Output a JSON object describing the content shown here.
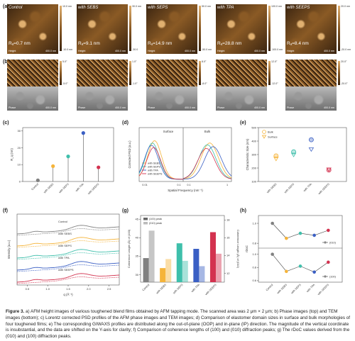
{
  "panel_letters": {
    "a": "(a)",
    "b": "(b)",
    "c": "(c)",
    "d": "(d)",
    "e": "(e)",
    "f": "(f)",
    "g": "(g)",
    "h": "(h)"
  },
  "afm": {
    "samples": [
      {
        "label": "Control",
        "rq": "Rₐ=0.7 nm",
        "cbar_top": "10.0 nm",
        "cbar_bot": "-10.0 nm",
        "scale": "400.0 nm"
      },
      {
        "label": "with SEBS",
        "rq": "Rₐ=9.1 nm",
        "cbar_top": "30.0 nm",
        "cbar_bot": "-30.0",
        "scale": "400.0 nm"
      },
      {
        "label": "with SEPS",
        "rq": "Rₐ=14.9 nm",
        "cbar_top": "50.0 nm",
        "cbar_bot": "-50.0 nm",
        "scale": "400.0 nm"
      },
      {
        "label": "with TPA",
        "rq": "Rₐ=28.8 nm",
        "cbar_top": "100.0 nm",
        "cbar_bot": "-100.0 nm",
        "scale": "400.0 nm"
      },
      {
        "label": "with SEEPS",
        "rq": "Rₐ=8.4 nm",
        "cbar_top": "20.0 nm",
        "cbar_bot": "-20.0 nm",
        "scale": "400.0 nm"
      }
    ],
    "height_tag": "Height",
    "phase_tag": "Phase",
    "phase_cbars": [
      {
        "top": "5.0°",
        "bot": "-5.0°"
      },
      {
        "top": "1.0°",
        "bot": "-1.0°"
      },
      {
        "top": "8.0°",
        "bot": "-8.0°"
      },
      {
        "top": "12.0°",
        "bot": "-12.0°"
      },
      {
        "top": "20.0°",
        "bot": "-20.0°"
      }
    ]
  },
  "colors": {
    "control": "#808080",
    "sebs": "#f5b43a",
    "seps": "#3ebfab",
    "tpa": "#3a5fc4",
    "seeps": "#d3324f",
    "afm_dark": "#3a2410",
    "afm_mid": "#8a5a25",
    "afm_light": "#e0b070"
  },
  "chart_data": [
    {
      "panel": "c",
      "type": "scatter",
      "ylabel": "R_q (nm)",
      "categories": [
        "Control",
        "with SEBS",
        "with SEPS",
        "with TPA",
        "with SEEPS"
      ],
      "values": [
        0.7,
        9.1,
        14.9,
        28.8,
        8.4
      ],
      "yticks": [
        0,
        10,
        20,
        30
      ],
      "ylim": [
        0,
        32
      ]
    },
    {
      "panel": "d",
      "type": "line",
      "xlabel": "Spatial Frequency (nm⁻¹)",
      "ylabel": "Corrected PSD (a.u.)",
      "regions": [
        "Surface",
        "Bulk"
      ],
      "xticks_left": [
        "0.01",
        "0.1"
      ],
      "xticks_right": [
        "0.1",
        "1"
      ],
      "series": [
        {
          "name": "with SEBS",
          "color": "#f5b43a"
        },
        {
          "name": "with SEPS",
          "color": "#3ebfab"
        },
        {
          "name": "with TPA",
          "color": "#3a5fc4"
        },
        {
          "name": "with SEEPS",
          "color": "#d3324f"
        }
      ]
    },
    {
      "panel": "e",
      "type": "scatter",
      "ylabel": "Characteristic Size (nm)",
      "categories": [
        "with SEBS",
        "with SEPS",
        "with TPA",
        "with SEEPS"
      ],
      "series": [
        {
          "name": "Bulk",
          "values": [
            290,
            320,
            410,
            185
          ]
        },
        {
          "name": "Surface",
          "values": [
            270,
            300,
            340,
            190
          ]
        }
      ],
      "yticks": [
        100,
        200,
        300,
        400,
        500
      ],
      "ylim": [
        100,
        500
      ]
    },
    {
      "panel": "f",
      "type": "line",
      "xlabel": "q (Å⁻¹)",
      "ylabel": "Intensity (a.u.)",
      "xticks": [
        "0.5",
        "1.0",
        "1.5",
        "2.0",
        "2.5"
      ],
      "series_labels": [
        "Control",
        "with SEBS",
        "with SEPS",
        "with TPA",
        "with SEEPS"
      ]
    },
    {
      "panel": "g",
      "type": "bar",
      "categories": [
        "Control",
        "with SEBS",
        "with SEPS",
        "with TPA",
        "with SEEPS"
      ],
      "legend": [
        "(100) peak",
        "(010) peak"
      ],
      "ylabel_left": "Coherence Length (Å) of (100)",
      "ylabel_right": "Coherence Length (Å) of (010)",
      "values_100": [
        34.5,
        31.8,
        38.5,
        37.0,
        41.5
      ],
      "values_010": [
        16.8,
        13.6,
        13.4,
        12.8,
        14.2
      ],
      "yticks_left": [
        30,
        35,
        40,
        45
      ],
      "yticks_right": [
        12,
        14,
        16,
        18
      ]
    },
    {
      "panel": "h",
      "type": "line",
      "ylabel": "rDoC",
      "categories": [
        "Control",
        "with SEBS",
        "with SEPS",
        "with TPA",
        "with SEEPS"
      ],
      "series": [
        {
          "name": "(010)",
          "values": [
            1.0,
            0.85,
            0.9,
            0.88,
            0.93
          ]
        },
        {
          "name": "(100)",
          "values": [
            1.0,
            0.74,
            0.82,
            0.73,
            0.88
          ]
        }
      ],
      "yticks_top": [
        "0.8",
        "1.0"
      ],
      "yticks_bottom": [
        "0.6",
        "0.8",
        "1.0"
      ]
    }
  ],
  "caption": {
    "figure": "Figure 3.",
    "text": " a) AFM height images of various toughened blend films obtained by AFM tapping mode. The scanned area was 2 μm × 2 μm; b) Phase images (top) and TEM images (bottom); c) Lorentz corrected PSD profiles of the AFM phase images and TEM images; d) Comparison of elastomer domain sizes in surface and bulk morphologies of four toughened films; e) The corresponding GIWAXS profiles are distributed along the out-of-plane (OOP) and in-plane (IP) direction. The magnitude of the vertical coordinate is insubstantial, and the data are shifted on the Y-axis for clarity; f) Comparison of coherence lengths of (100) and (010) diffraction peaks; g) The rDoC values derived from the (010) and (100) diffraction peaks."
  }
}
